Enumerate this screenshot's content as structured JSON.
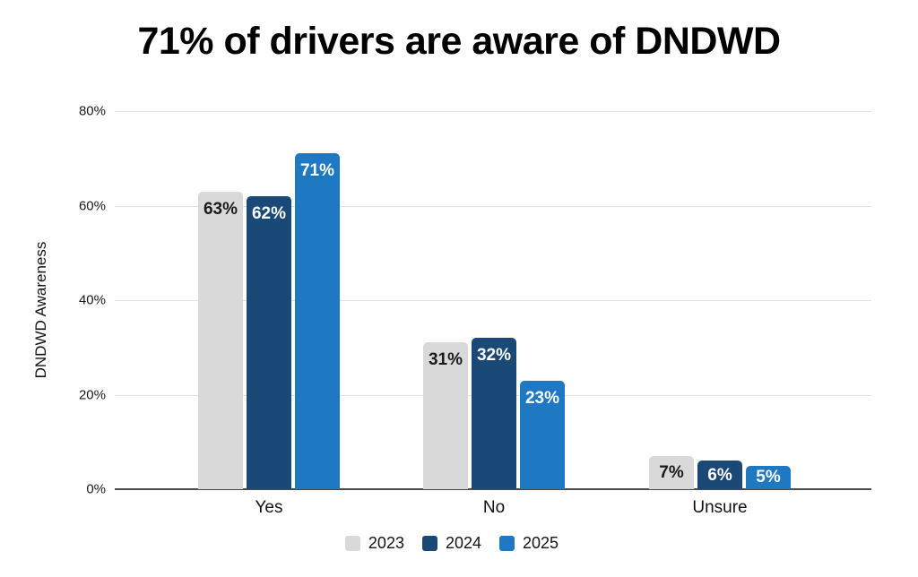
{
  "chart_data": {
    "type": "bar",
    "title": "71% of drivers are aware of DNDWD",
    "categories": [
      "Yes",
      "No",
      "Unsure"
    ],
    "series": [
      {
        "name": "2023",
        "values": [
          63,
          31,
          7
        ],
        "color": "#d9d9d9",
        "label_color": "#1a1a1a"
      },
      {
        "name": "2024",
        "values": [
          62,
          32,
          6
        ],
        "color": "#1b4977",
        "label_color": "#ffffff"
      },
      {
        "name": "2025",
        "values": [
          71,
          23,
          5
        ],
        "color": "#1e78c2",
        "label_color": "#ffffff"
      }
    ],
    "data_label_format": "{v}%",
    "xlabel": "",
    "ylabel": "DNDWD Awareness",
    "ylim": [
      0,
      80
    ],
    "yticks": [
      0,
      20,
      40,
      60,
      80
    ],
    "ytick_format": "{v}%",
    "grid": true,
    "grid_color": "#e2e2e2",
    "axis_color": "#4a4a4a",
    "legend_position": "bottom"
  }
}
